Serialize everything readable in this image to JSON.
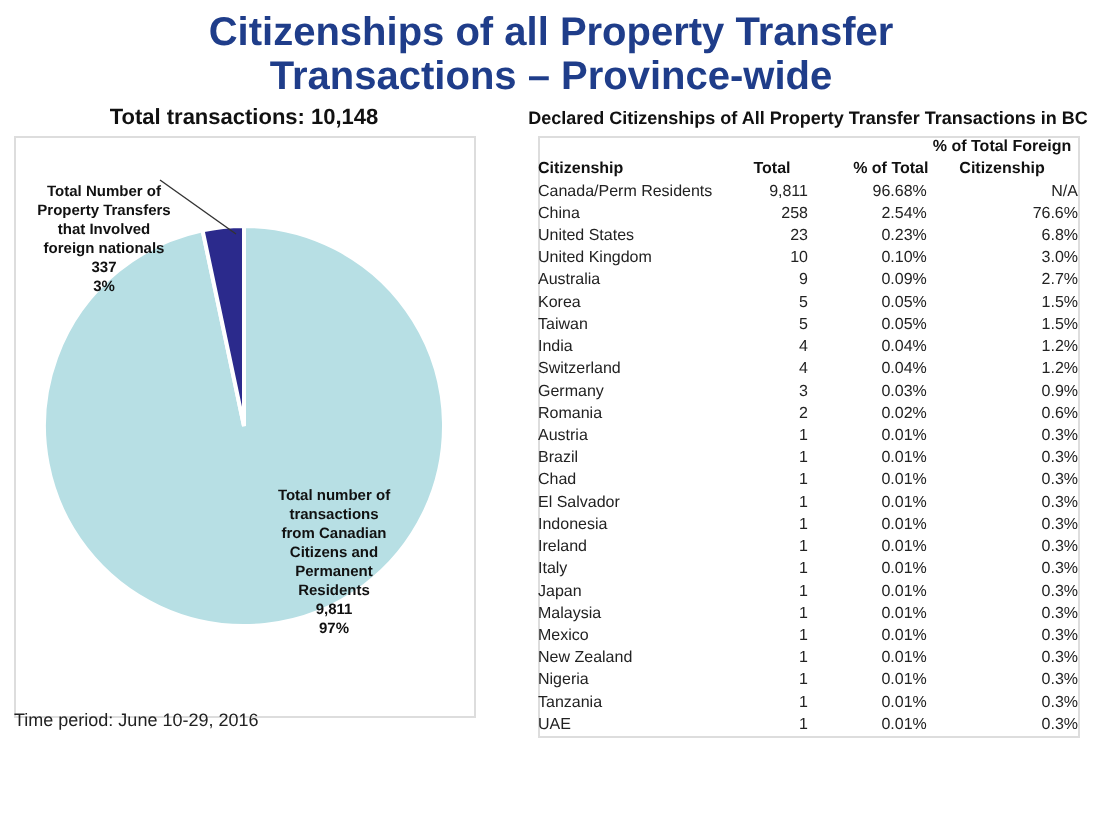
{
  "chart_data": [
    {
      "type": "pie",
      "title": "Citizenships of all Property Transfer Transactions – Province-wide",
      "subtitle": "Total transactions: 10,148",
      "categories": [
        "Total number of transactions from Canadian Citizens and Permanent Residents",
        "Total Number of Property Transfers that Involved foreign nationals"
      ],
      "values": [
        9811,
        337
      ],
      "value_labels": [
        "9,811\n97%",
        "337\n3%"
      ],
      "colors": [
        "#b7dfe4",
        "#2b2a8c"
      ],
      "annotations": [
        "Time period: June 10-29, 2016"
      ]
    },
    {
      "type": "other",
      "title": "Declared Citizenships of All Property Transfer Transactions in BC",
      "xlabel": "Citizenship",
      "categories": [
        "Canada/Perm Residents",
        "China",
        "United States",
        "United Kingdom",
        "Australia",
        "Korea",
        "Taiwan",
        "India",
        "Switzerland",
        "Germany",
        "Romania",
        "Austria",
        "Brazil",
        "Chad",
        "El Salvador",
        "Indonesia",
        "Ireland",
        "Italy",
        "Japan",
        "Malaysia",
        "Mexico",
        "New Zealand",
        "Nigeria",
        "Tanzania",
        "UAE"
      ],
      "series": [
        {
          "name": "Total",
          "values": [
            9811,
            258,
            23,
            10,
            9,
            5,
            5,
            4,
            4,
            3,
            2,
            1,
            1,
            1,
            1,
            1,
            1,
            1,
            1,
            1,
            1,
            1,
            1,
            1,
            1
          ],
          "value_labels": [
            "9,811",
            "258",
            "23",
            "10",
            "9",
            "5",
            "5",
            "4",
            "4",
            "3",
            "2",
            "1",
            "1",
            "1",
            "1",
            "1",
            "1",
            "1",
            "1",
            "1",
            "1",
            "1",
            "1",
            "1",
            "1"
          ]
        },
        {
          "name": "% of Total",
          "values": [
            96.68,
            2.54,
            0.23,
            0.1,
            0.09,
            0.05,
            0.05,
            0.04,
            0.04,
            0.03,
            0.02,
            0.01,
            0.01,
            0.01,
            0.01,
            0.01,
            0.01,
            0.01,
            0.01,
            0.01,
            0.01,
            0.01,
            0.01,
            0.01,
            0.01
          ],
          "value_labels": [
            "96.68%",
            "2.54%",
            "0.23%",
            "0.10%",
            "0.09%",
            "0.05%",
            "0.05%",
            "0.04%",
            "0.04%",
            "0.03%",
            "0.02%",
            "0.01%",
            "0.01%",
            "0.01%",
            "0.01%",
            "0.01%",
            "0.01%",
            "0.01%",
            "0.01%",
            "0.01%",
            "0.01%",
            "0.01%",
            "0.01%",
            "0.01%",
            "0.01%"
          ]
        },
        {
          "name": "% of Total Foreign Citizenship",
          "values": [
            null,
            76.6,
            6.8,
            3.0,
            2.7,
            1.5,
            1.5,
            1.2,
            1.2,
            0.9,
            0.6,
            0.3,
            0.3,
            0.3,
            0.3,
            0.3,
            0.3,
            0.3,
            0.3,
            0.3,
            0.3,
            0.3,
            0.3,
            0.3,
            0.3
          ],
          "value_labels": [
            "N/A",
            "76.6%",
            "6.8%",
            "3.0%",
            "2.7%",
            "1.5%",
            "1.5%",
            "1.2%",
            "1.2%",
            "0.9%",
            "0.6%",
            "0.3%",
            "0.3%",
            "0.3%",
            "0.3%",
            "0.3%",
            "0.3%",
            "0.3%",
            "0.3%",
            "0.3%",
            "0.3%",
            "0.3%",
            "0.3%",
            "0.3%",
            "0.3%"
          ]
        }
      ]
    }
  ]
}
